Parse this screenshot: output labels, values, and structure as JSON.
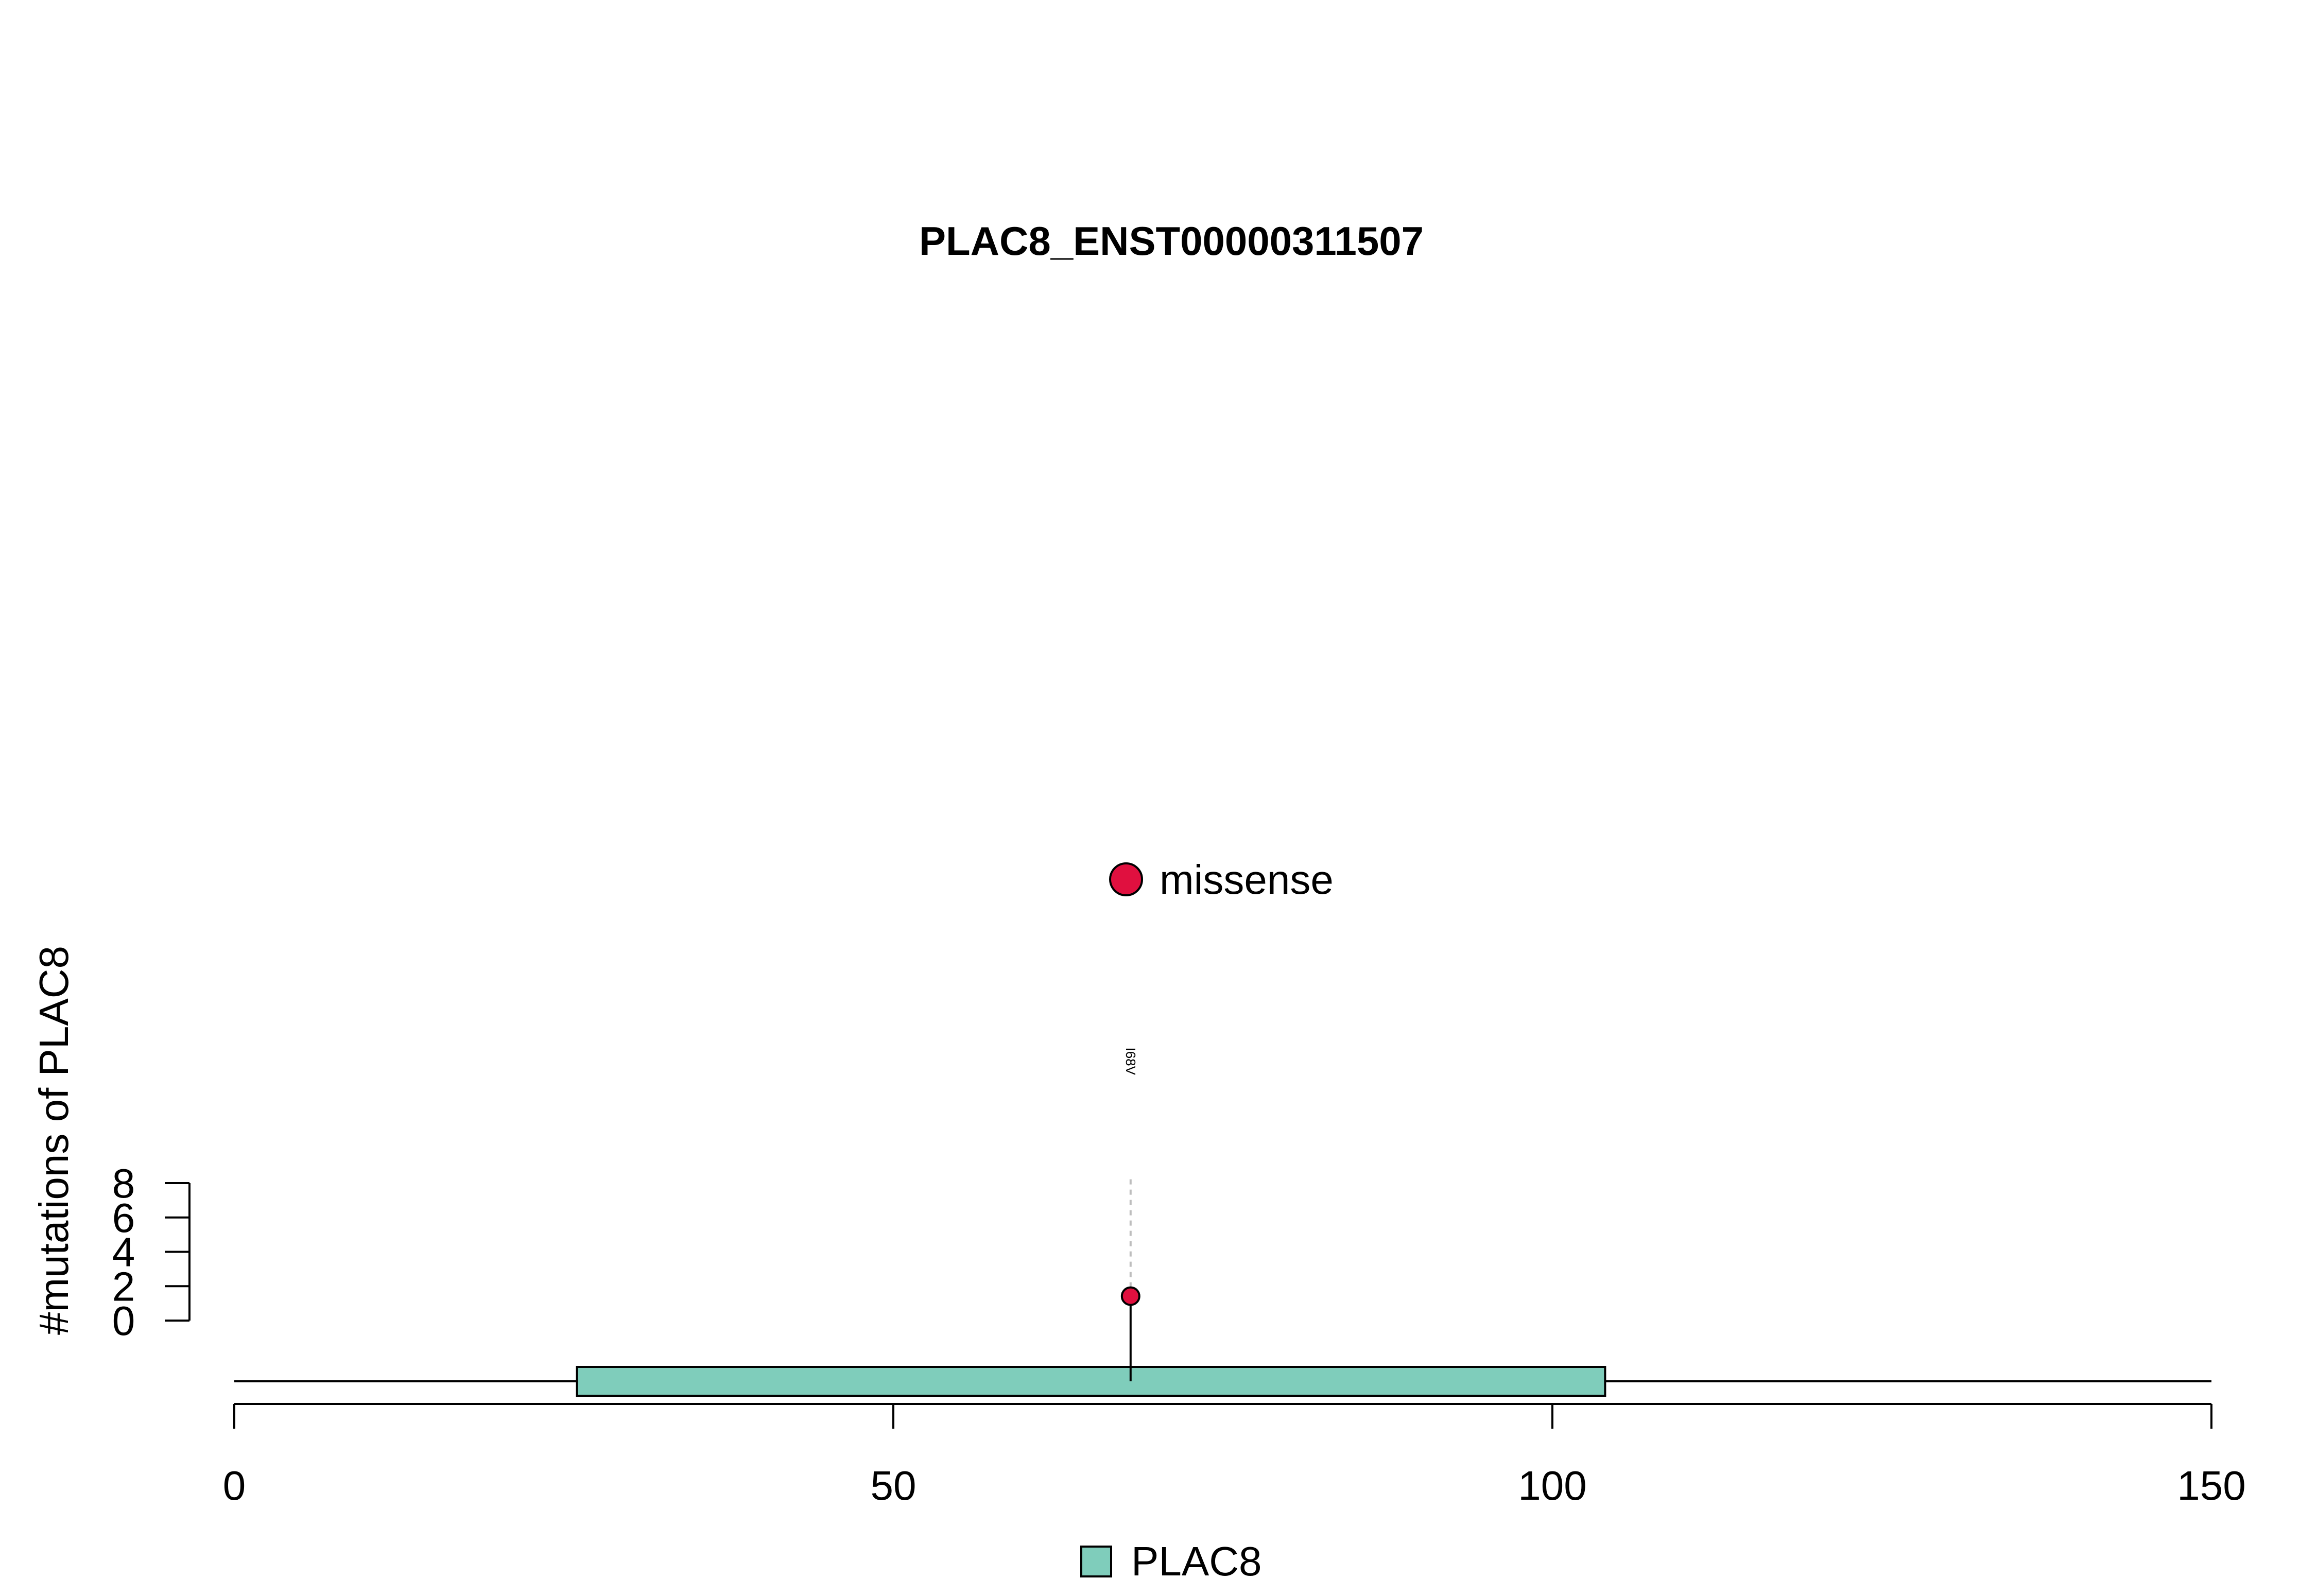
{
  "chart_data": {
    "type": "lollipop",
    "title": "PLAC8_ENST00000311507",
    "ylabel": "#mutations of PLAC8",
    "xlim": [
      0,
      150
    ],
    "x_ticks": [
      0,
      50,
      100,
      150
    ],
    "y_ticks": [
      0,
      2,
      4,
      6,
      8
    ],
    "ylim": [
      0,
      8
    ],
    "protein_length": 150,
    "domains": [
      {
        "name": "PLAC8",
        "start": 26,
        "end": 104,
        "color": "#7fcdbb"
      }
    ],
    "mutations": [
      {
        "position": 68,
        "count": 1,
        "label": "I68V",
        "type": "missense",
        "color": "#e0103f"
      }
    ],
    "mutation_legend": [
      {
        "label": "missense",
        "color": "#e0103f"
      }
    ],
    "domain_legend": [
      {
        "label": "PLAC8",
        "color": "#7fcdbb"
      }
    ]
  }
}
